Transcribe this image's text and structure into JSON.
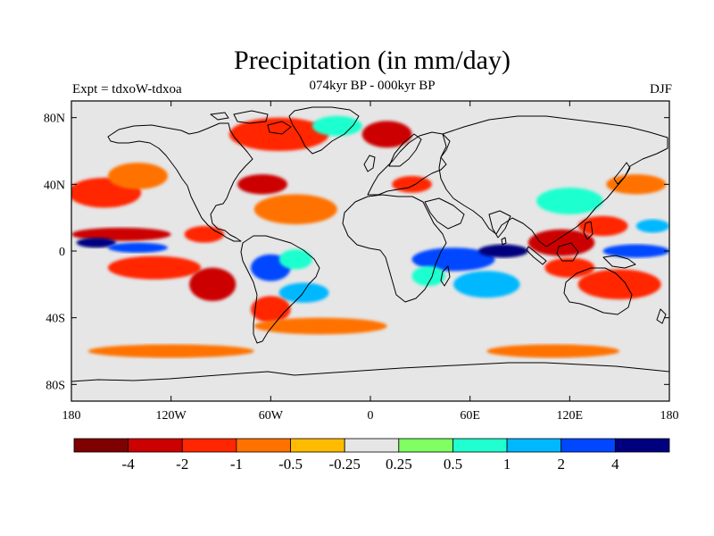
{
  "title": "Precipitation (in mm/day)",
  "subtitle_left": "Expt = tdxoW-tdxoa",
  "subtitle_center": "074kyr BP - 000kyr BP",
  "subtitle_right": "DJF",
  "map": {
    "projection": "cylindrical equidistant",
    "lon_range": [
      -180,
      180
    ],
    "lat_range": [
      -90,
      90
    ],
    "x_ticks": [
      {
        "lon": -180,
        "label": "180"
      },
      {
        "lon": -120,
        "label": "120W"
      },
      {
        "lon": -60,
        "label": "60W"
      },
      {
        "lon": 0,
        "label": "0"
      },
      {
        "lon": 60,
        "label": "60E"
      },
      {
        "lon": 120,
        "label": "120E"
      },
      {
        "lon": 180,
        "label": "180"
      }
    ],
    "y_ticks": [
      {
        "lat": 80,
        "label": "80N"
      },
      {
        "lat": 40,
        "label": "40N"
      },
      {
        "lat": 0,
        "label": "0"
      },
      {
        "lat": -40,
        "label": "40S"
      },
      {
        "lat": -80,
        "label": "80S"
      }
    ],
    "background_color": "#e6e6e6",
    "anomaly_regions": [
      {
        "lon": -160,
        "lat": 35,
        "rx": 22,
        "ry": 9,
        "level": "-1"
      },
      {
        "lon": -140,
        "lat": 45,
        "rx": 18,
        "ry": 8,
        "level": "-0.5"
      },
      {
        "lon": -150,
        "lat": 10,
        "rx": 30,
        "ry": 4,
        "level": "-2"
      },
      {
        "lon": -165,
        "lat": 5,
        "rx": 12,
        "ry": 3,
        "level": "4"
      },
      {
        "lon": -140,
        "lat": 2,
        "rx": 18,
        "ry": 3,
        "level": "2"
      },
      {
        "lon": -130,
        "lat": -10,
        "rx": 28,
        "ry": 7,
        "level": "-1"
      },
      {
        "lon": -95,
        "lat": -20,
        "rx": 14,
        "ry": 10,
        "level": "-2"
      },
      {
        "lon": -100,
        "lat": 10,
        "rx": 12,
        "ry": 5,
        "level": "-1"
      },
      {
        "lon": -60,
        "lat": -10,
        "rx": 12,
        "ry": 8,
        "level": "2"
      },
      {
        "lon": -45,
        "lat": -5,
        "rx": 10,
        "ry": 6,
        "level": "0.5"
      },
      {
        "lon": -40,
        "lat": -25,
        "rx": 15,
        "ry": 6,
        "level": "1"
      },
      {
        "lon": -60,
        "lat": -35,
        "rx": 12,
        "ry": 8,
        "level": "-1"
      },
      {
        "lon": -45,
        "lat": 25,
        "rx": 25,
        "ry": 9,
        "level": "-0.5"
      },
      {
        "lon": -65,
        "lat": 40,
        "rx": 15,
        "ry": 6,
        "level": "-2"
      },
      {
        "lon": -55,
        "lat": 70,
        "rx": 30,
        "ry": 10,
        "level": "-1"
      },
      {
        "lon": -20,
        "lat": 75,
        "rx": 15,
        "ry": 6,
        "level": "0.5"
      },
      {
        "lon": 10,
        "lat": 70,
        "rx": 15,
        "ry": 8,
        "level": "-2"
      },
      {
        "lon": 25,
        "lat": 40,
        "rx": 12,
        "ry": 5,
        "level": "-1"
      },
      {
        "lon": 50,
        "lat": -5,
        "rx": 25,
        "ry": 7,
        "level": "2"
      },
      {
        "lon": 35,
        "lat": -15,
        "rx": 10,
        "ry": 6,
        "level": "0.5"
      },
      {
        "lon": 80,
        "lat": 0,
        "rx": 15,
        "ry": 4,
        "level": "4"
      },
      {
        "lon": 70,
        "lat": -20,
        "rx": 20,
        "ry": 8,
        "level": "1"
      },
      {
        "lon": 115,
        "lat": 5,
        "rx": 20,
        "ry": 8,
        "level": "-2"
      },
      {
        "lon": 120,
        "lat": -10,
        "rx": 15,
        "ry": 6,
        "level": "-1"
      },
      {
        "lon": 140,
        "lat": 15,
        "rx": 15,
        "ry": 6,
        "level": "-1"
      },
      {
        "lon": 150,
        "lat": -20,
        "rx": 25,
        "ry": 9,
        "level": "-1"
      },
      {
        "lon": 160,
        "lat": 0,
        "rx": 20,
        "ry": 4,
        "level": "2"
      },
      {
        "lon": 160,
        "lat": 40,
        "rx": 18,
        "ry": 6,
        "level": "-0.5"
      },
      {
        "lon": 170,
        "lat": 15,
        "rx": 10,
        "ry": 4,
        "level": "1"
      },
      {
        "lon": 120,
        "lat": 30,
        "rx": 20,
        "ry": 8,
        "level": "0.5"
      },
      {
        "lon": 110,
        "lat": -60,
        "rx": 40,
        "ry": 4,
        "level": "-0.5"
      },
      {
        "lon": -120,
        "lat": -60,
        "rx": 50,
        "ry": 4,
        "level": "-0.5"
      },
      {
        "lon": -30,
        "lat": -45,
        "rx": 40,
        "ry": 5,
        "level": "-0.5"
      }
    ]
  },
  "colorbar": {
    "colors": [
      "#7f0000",
      "#cc0000",
      "#ff2600",
      "#ff7200",
      "#ffbb00",
      "#e6e6e6",
      "#7fff62",
      "#1fffcf",
      "#00b8ff",
      "#0047ff",
      "#00007f"
    ],
    "labels": [
      "-4",
      "-2",
      "-1",
      "-0.5",
      "-0.25",
      "0.25",
      "0.5",
      "1",
      "2",
      "4"
    ]
  }
}
